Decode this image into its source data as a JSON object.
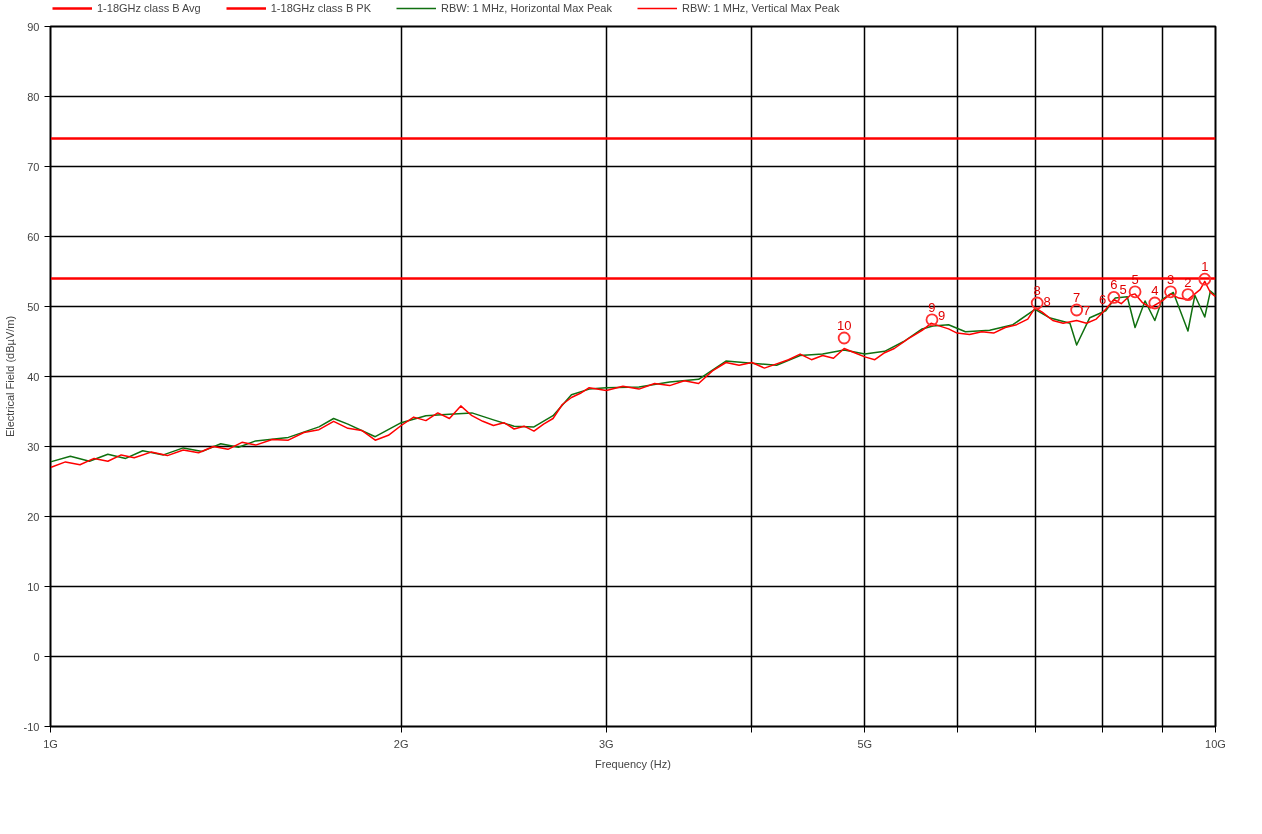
{
  "chart_data": {
    "type": "line",
    "xlabel": "Frequency (Hz)",
    "ylabel": "Electrical Field (dBµV/m)",
    "log": "x",
    "grid": true,
    "legend": "top",
    "xlim": [
      1,
      10
    ],
    "ylim": [
      -10,
      90
    ],
    "xticks": [
      {
        "value": 1,
        "label": "1G"
      },
      {
        "value": 2,
        "label": "2G"
      },
      {
        "value": 3,
        "label": "3G"
      },
      {
        "value": 4,
        "label": null
      },
      {
        "value": 5,
        "label": "5G"
      },
      {
        "value": 6,
        "label": null
      },
      {
        "value": 7,
        "label": null
      },
      {
        "value": 8,
        "label": null
      },
      {
        "value": 9,
        "label": null
      },
      {
        "value": 10,
        "label": "10G"
      }
    ],
    "yticks": [
      -10,
      0,
      10,
      20,
      30,
      40,
      50,
      60,
      70,
      80,
      90
    ],
    "ref_lines": [
      {
        "axis": "y",
        "value": 54,
        "label": "1-18GHz class B Avg",
        "color": "#ff0000"
      },
      {
        "axis": "y",
        "value": 74,
        "label": "1-18GHz class B PK",
        "color": "#ff0000"
      }
    ],
    "series": [
      {
        "name": "RBW: 1 MHz, Horizontal Max Peak",
        "color": "#107010",
        "x": [
          1.0,
          1.04,
          1.08,
          1.12,
          1.16,
          1.2,
          1.25,
          1.3,
          1.35,
          1.4,
          1.45,
          1.5,
          1.6,
          1.7,
          1.75,
          1.8,
          1.9,
          2.0,
          2.1,
          2.2,
          2.3,
          2.4,
          2.5,
          2.6,
          2.7,
          2.8,
          2.9,
          3.0,
          3.2,
          3.4,
          3.6,
          3.8,
          4.0,
          4.2,
          4.4,
          4.6,
          4.8,
          5.0,
          5.2,
          5.4,
          5.6,
          5.72,
          5.9,
          6.1,
          6.4,
          6.7,
          7.0,
          7.2,
          7.5,
          7.6,
          7.8,
          8.05,
          8.2,
          8.4,
          8.53,
          8.7,
          8.87,
          9.0,
          9.2,
          9.47,
          9.6,
          9.79,
          9.9,
          10.0
        ],
        "values": [
          27.8,
          28.6,
          27.9,
          28.9,
          28.3,
          29.4,
          28.8,
          29.8,
          29.3,
          30.4,
          29.9,
          30.8,
          31.3,
          32.8,
          34.0,
          33.2,
          31.4,
          33.4,
          34.4,
          34.6,
          34.8,
          33.8,
          32.9,
          32.8,
          34.4,
          37.4,
          38.2,
          38.4,
          38.5,
          39.2,
          39.6,
          42.2,
          41.9,
          41.6,
          43.0,
          43.2,
          43.8,
          43.2,
          43.6,
          45.0,
          46.8,
          47.2,
          47.4,
          46.4,
          46.6,
          47.4,
          49.6,
          48.4,
          47.6,
          44.5,
          48.4,
          49.4,
          51.2,
          51.4,
          47.0,
          50.8,
          48.0,
          51.0,
          52.0,
          46.5,
          51.6,
          48.5,
          52.2,
          51.6
        ]
      },
      {
        "name": "RBW: 1 MHz, Vertical Max Peak",
        "color": "#ff0000",
        "x": [
          1.0,
          1.03,
          1.06,
          1.09,
          1.12,
          1.15,
          1.18,
          1.22,
          1.26,
          1.3,
          1.34,
          1.38,
          1.42,
          1.46,
          1.5,
          1.55,
          1.6,
          1.65,
          1.7,
          1.75,
          1.8,
          1.85,
          1.9,
          1.95,
          2.0,
          2.05,
          2.1,
          2.15,
          2.2,
          2.25,
          2.3,
          2.35,
          2.4,
          2.45,
          2.5,
          2.55,
          2.6,
          2.65,
          2.7,
          2.75,
          2.8,
          2.85,
          2.9,
          3.0,
          3.1,
          3.2,
          3.3,
          3.4,
          3.5,
          3.6,
          3.7,
          3.8,
          3.9,
          4.0,
          4.1,
          4.2,
          4.3,
          4.4,
          4.5,
          4.6,
          4.7,
          4.8,
          4.9,
          5.0,
          5.1,
          5.2,
          5.3,
          5.45,
          5.6,
          5.7,
          5.8,
          5.9,
          6.0,
          6.15,
          6.3,
          6.45,
          6.6,
          6.75,
          6.9,
          7.0,
          7.1,
          7.25,
          7.4,
          7.6,
          7.75,
          7.9,
          8.05,
          8.18,
          8.3,
          8.45,
          8.53,
          8.65,
          8.8,
          8.87,
          9.0,
          9.15,
          9.3,
          9.47,
          9.6,
          9.7,
          9.79,
          9.9,
          10.0
        ],
        "values": [
          27.0,
          27.8,
          27.4,
          28.3,
          27.9,
          28.8,
          28.4,
          29.2,
          28.7,
          29.5,
          29.1,
          30.0,
          29.6,
          30.6,
          30.2,
          31.0,
          30.9,
          32.0,
          32.4,
          33.6,
          32.6,
          32.3,
          30.9,
          31.6,
          33.0,
          34.2,
          33.7,
          34.8,
          34.0,
          35.8,
          34.4,
          33.6,
          33.0,
          33.4,
          32.5,
          32.9,
          32.2,
          33.2,
          34.0,
          36.0,
          37.0,
          37.6,
          38.4,
          38.0,
          38.6,
          38.2,
          39.0,
          38.7,
          39.4,
          39.0,
          40.8,
          42.0,
          41.6,
          42.0,
          41.2,
          41.8,
          42.4,
          43.2,
          42.4,
          43.0,
          42.6,
          44.0,
          43.4,
          42.8,
          42.4,
          43.4,
          44.0,
          45.4,
          46.6,
          47.6,
          47.2,
          46.8,
          46.2,
          46.0,
          46.4,
          46.2,
          47.0,
          47.4,
          48.2,
          49.8,
          49.2,
          48.0,
          47.6,
          48.0,
          47.6,
          48.2,
          49.6,
          51.0,
          50.4,
          51.6,
          51.8,
          50.6,
          49.8,
          50.2,
          50.8,
          51.8,
          51.2,
          51.0,
          51.8,
          52.4,
          53.6,
          52.0,
          51.4
        ]
      },
      {
        "type": "scatter",
        "marker": "circle",
        "color": "#ff3030",
        "x": [
          9.79,
          9.47,
          9.15,
          8.87,
          8.53,
          8.18,
          7.6,
          7.03,
          5.71,
          4.8
        ],
        "values": [
          53.9,
          51.7,
          52.1,
          50.5,
          52.1,
          51.3,
          49.5,
          50.5,
          48.1,
          45.5
        ]
      }
    ],
    "annotations": [
      {
        "text": "1",
        "x": 9.79,
        "y": 53.9
      },
      {
        "text": "2",
        "x": 9.47,
        "y": 51.7
      },
      {
        "text": "3",
        "x": 9.15,
        "y": 52.1
      },
      {
        "text": "4",
        "x": 8.87,
        "y": 50.5
      },
      {
        "text": "5",
        "x": 8.53,
        "y": 52.1
      },
      {
        "text": "6",
        "x": 8.18,
        "y": 51.3
      },
      {
        "text": "7",
        "x": 7.6,
        "y": 49.5
      },
      {
        "text": "8",
        "x": 7.03,
        "y": 50.5
      },
      {
        "text": "9",
        "x": 5.71,
        "y": 48.1
      },
      {
        "text": "10",
        "x": 4.8,
        "y": 45.5
      },
      {
        "text": "5",
        "x": 8.33,
        "y": 50.6
      },
      {
        "text": "6",
        "x": 8.0,
        "y": 49.2
      },
      {
        "text": "7",
        "x": 7.75,
        "y": 47.7
      },
      {
        "text": "8",
        "x": 7.17,
        "y": 49.0
      },
      {
        "text": "9",
        "x": 5.82,
        "y": 47.0
      }
    ]
  }
}
